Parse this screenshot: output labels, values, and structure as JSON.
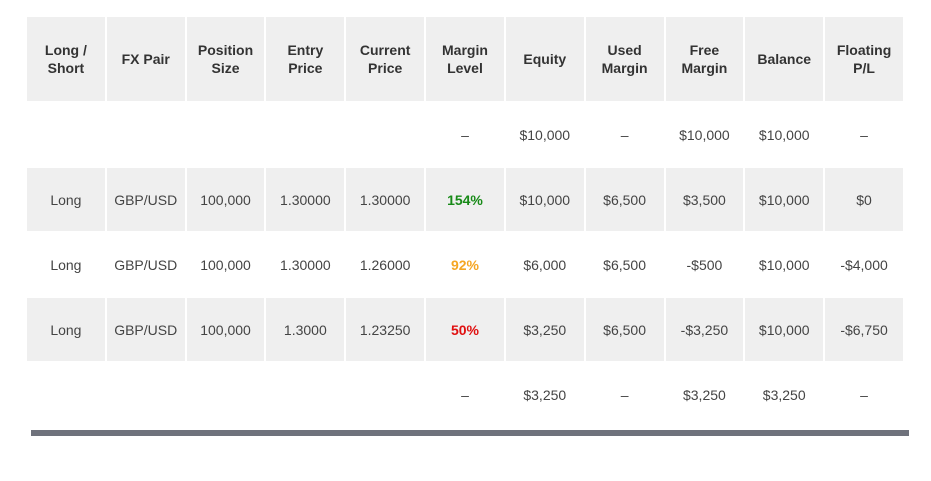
{
  "table": {
    "header": [
      "Long / Short",
      "FX Pair",
      "Position Size",
      "Entry Price",
      "Current Price",
      "Margin Level",
      "Equity",
      "Used Margin",
      "Free Margin",
      "Balance",
      "Floating P/L"
    ],
    "rows": [
      [
        null,
        null,
        null,
        null,
        null,
        "–",
        "$10,000",
        "–",
        "$10,000",
        "$10,000",
        "–"
      ],
      [
        "Long",
        "GBP/USD",
        "100,000",
        "1.30000",
        "1.30000",
        "154%",
        "$10,000",
        "$6,500",
        "$3,500",
        "$10,000",
        "$0"
      ],
      [
        "Long",
        "GBP/USD",
        "100,000",
        "1.30000",
        "1.26000",
        "92%",
        "$6,000",
        "$6,500",
        "-$500",
        "$10,000",
        "-$4,000"
      ],
      [
        "Long",
        "GBP/USD",
        "100,000",
        "1.3000",
        "1.23250",
        "50%",
        "$3,250",
        "$6,500",
        "-$3,250",
        "$10,000",
        "-$6,750"
      ],
      [
        null,
        null,
        null,
        null,
        null,
        "–",
        "$3,250",
        "–",
        "$3,250",
        "$3,250",
        "–"
      ]
    ],
    "level_colors": [
      null,
      "#178a17",
      "#f5a623",
      "#e01010",
      null
    ]
  }
}
